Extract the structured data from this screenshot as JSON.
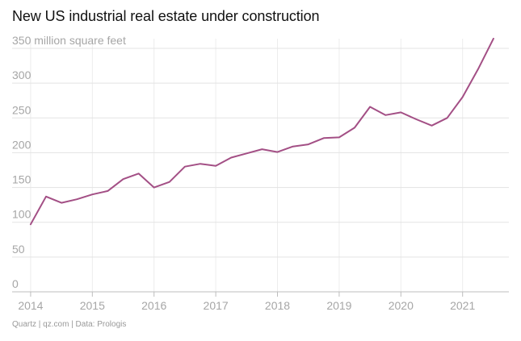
{
  "chart_data": {
    "type": "line",
    "title": "New US industrial real estate under construction",
    "ylabel": "million square feet",
    "xlabel": "",
    "source": "Quartz | qz.com | Data: Prologis",
    "ylim": [
      0,
      350
    ],
    "xlim": [
      2013.7,
      2021.75
    ],
    "yticks": [
      0,
      50,
      100,
      150,
      200,
      250,
      300,
      350
    ],
    "ytick_labels": [
      "0",
      "50",
      "100",
      "150",
      "200",
      "250",
      "300",
      "350 million square feet"
    ],
    "xticks": [
      2014,
      2015,
      2016,
      2017,
      2018,
      2019,
      2020,
      2021
    ],
    "xtick_labels": [
      "2014",
      "2015",
      "2016",
      "2017",
      "2018",
      "2019",
      "2020",
      "2021"
    ],
    "grid": true,
    "colors": {
      "line": "#a34f85"
    },
    "series": [
      {
        "name": "Under construction",
        "x": [
          2014.0,
          2014.25,
          2014.5,
          2014.75,
          2015.0,
          2015.25,
          2015.5,
          2015.75,
          2016.0,
          2016.25,
          2016.5,
          2016.75,
          2017.0,
          2017.25,
          2017.5,
          2017.75,
          2018.0,
          2018.25,
          2018.5,
          2018.75,
          2019.0,
          2019.25,
          2019.5,
          2019.75,
          2020.0,
          2020.25,
          2020.5,
          2020.75,
          2021.0,
          2021.25,
          2021.5
        ],
        "values": [
          97,
          137,
          128,
          133,
          140,
          145,
          162,
          170,
          150,
          158,
          180,
          184,
          181,
          193,
          199,
          205,
          201,
          209,
          212,
          221,
          222,
          236,
          266,
          254,
          258,
          248,
          239,
          250,
          280,
          320,
          364
        ]
      }
    ]
  }
}
